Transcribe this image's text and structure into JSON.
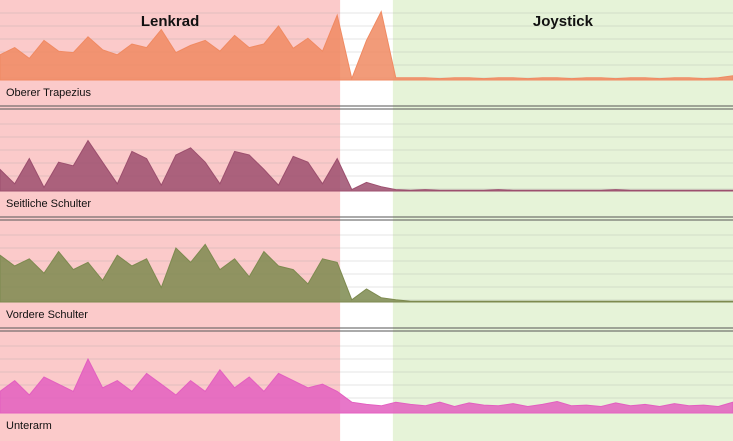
{
  "chart_data": {
    "type": "line",
    "layout": "stacked-panels",
    "xlim": [
      0,
      100
    ],
    "ylim": [
      0,
      100
    ],
    "sections": [
      {
        "label": "Lenkrad",
        "range": [
          0,
          46.4
        ],
        "color": "#fbcaca"
      },
      {
        "label": "Joystick",
        "range": [
          53.6,
          100
        ],
        "color": "#e6f3d8"
      }
    ],
    "x": [
      0,
      2,
      4,
      6,
      8,
      10,
      12,
      14,
      16,
      18,
      20,
      22,
      24,
      26,
      28,
      30,
      32,
      34,
      36,
      38,
      40,
      42,
      44,
      46,
      48,
      50,
      52,
      54,
      56,
      58,
      60,
      62,
      64,
      66,
      68,
      70,
      72,
      74,
      76,
      78,
      80,
      82,
      84,
      86,
      88,
      90,
      92,
      94,
      96,
      98,
      100
    ],
    "series": [
      {
        "name": "Oberer Trapezius",
        "color": "#f08a62",
        "values": [
          35,
          45,
          30,
          55,
          40,
          38,
          60,
          42,
          35,
          50,
          45,
          70,
          38,
          48,
          55,
          40,
          62,
          45,
          50,
          75,
          44,
          58,
          40,
          90,
          2,
          55,
          95,
          3,
          3,
          3,
          2,
          3,
          3,
          2,
          3,
          3,
          2,
          3,
          3,
          2,
          3,
          3,
          2,
          3,
          3,
          2,
          3,
          3,
          2,
          3,
          6
        ]
      },
      {
        "name": "Seitliche Schulter",
        "color": "#9c4f6e",
        "values": [
          30,
          10,
          45,
          5,
          40,
          35,
          70,
          40,
          10,
          55,
          45,
          8,
          50,
          60,
          40,
          10,
          55,
          50,
          30,
          8,
          48,
          40,
          10,
          45,
          2,
          12,
          6,
          2,
          1,
          2,
          1,
          1,
          1,
          1,
          2,
          1,
          1,
          1,
          1,
          1,
          1,
          1,
          2,
          1,
          1,
          1,
          1,
          1,
          1,
          1,
          1
        ]
      },
      {
        "name": "Vordere Schulter",
        "color": "#7d8a4f",
        "values": [
          65,
          50,
          60,
          40,
          70,
          45,
          55,
          30,
          65,
          50,
          60,
          20,
          75,
          55,
          80,
          45,
          60,
          35,
          70,
          50,
          45,
          25,
          60,
          55,
          3,
          18,
          6,
          3,
          1,
          1,
          1,
          1,
          1,
          1,
          1,
          1,
          1,
          1,
          1,
          1,
          1,
          1,
          1,
          1,
          1,
          1,
          1,
          1,
          1,
          1,
          1
        ]
      },
      {
        "name": "Unterarm",
        "color": "#e35fc0",
        "values": [
          30,
          45,
          25,
          50,
          40,
          30,
          75,
          35,
          45,
          30,
          55,
          40,
          25,
          45,
          30,
          60,
          35,
          50,
          30,
          55,
          45,
          35,
          40,
          30,
          15,
          12,
          10,
          15,
          12,
          10,
          15,
          9,
          14,
          11,
          10,
          13,
          9,
          12,
          16,
          10,
          11,
          9,
          14,
          10,
          12,
          9,
          13,
          10,
          11,
          9,
          15
        ]
      }
    ]
  }
}
